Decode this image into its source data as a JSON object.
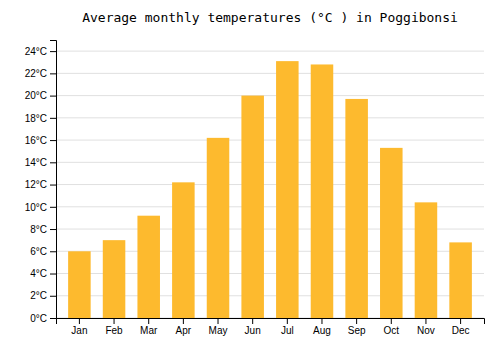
{
  "chart_data": {
    "type": "bar",
    "title": "Average monthly temperatures (°C ) in Poggibonsi",
    "categories": [
      "Jan",
      "Feb",
      "Mar",
      "Apr",
      "May",
      "Jun",
      "Jul",
      "Aug",
      "Sep",
      "Oct",
      "Nov",
      "Dec"
    ],
    "values": [
      6.0,
      7.0,
      9.2,
      12.2,
      16.2,
      20.0,
      23.1,
      22.8,
      19.7,
      15.3,
      10.4,
      6.8
    ],
    "color": "#FDBA2E",
    "ylim": [
      0,
      25
    ],
    "yticks": [
      {
        "value": 0,
        "label": "0°C"
      },
      {
        "value": 2,
        "label": "2°C"
      },
      {
        "value": 4,
        "label": "4°C"
      },
      {
        "value": 6,
        "label": "6°C"
      },
      {
        "value": 8,
        "label": "8°C"
      },
      {
        "value": 10,
        "label": "10°C"
      },
      {
        "value": 12,
        "label": "12°C"
      },
      {
        "value": 14,
        "label": "14°C"
      },
      {
        "value": 16,
        "label": "16°C"
      },
      {
        "value": 18,
        "label": "18°C"
      },
      {
        "value": 20,
        "label": "20°C"
      },
      {
        "value": 22,
        "label": "22°C"
      },
      {
        "value": 24,
        "label": "24°C"
      }
    ],
    "grid": true
  }
}
